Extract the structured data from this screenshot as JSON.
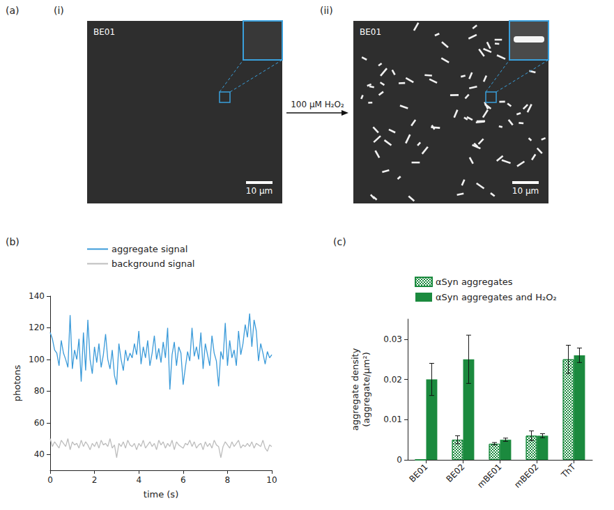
{
  "panels": {
    "a": {
      "panel_label": "(a)",
      "images": [
        {
          "label": "(i)",
          "sample": "BE01",
          "scale_bar": "10 μm"
        },
        {
          "label": "(ii)",
          "sample": "BE01",
          "scale_bar": "10 μm"
        }
      ],
      "arrow_label": "100 μM H₂O₂"
    }
  },
  "chart_data": [
    {
      "panel_label": "(b)",
      "type": "line",
      "xlabel": "time (s)",
      "ylabel": "photons",
      "x": [
        0,
        0.1,
        0.2,
        0.3,
        0.4,
        0.5,
        0.6,
        0.7,
        0.8,
        0.9,
        1,
        1.1,
        1.2,
        1.3,
        1.4,
        1.5,
        1.6,
        1.7,
        1.8,
        1.9,
        2,
        2.1,
        2.2,
        2.3,
        2.4,
        2.5,
        2.6,
        2.7,
        2.8,
        2.9,
        3,
        3.1,
        3.2,
        3.3,
        3.4,
        3.5,
        3.6,
        3.7,
        3.8,
        3.9,
        4,
        4.1,
        4.2,
        4.3,
        4.4,
        4.5,
        4.6,
        4.7,
        4.8,
        4.9,
        5,
        5.1,
        5.2,
        5.3,
        5.4,
        5.5,
        5.6,
        5.7,
        5.8,
        5.9,
        6,
        6.1,
        6.2,
        6.3,
        6.4,
        6.5,
        6.6,
        6.7,
        6.8,
        6.9,
        7,
        7.1,
        7.2,
        7.3,
        7.4,
        7.5,
        7.6,
        7.7,
        7.8,
        7.9,
        8,
        8.1,
        8.2,
        8.3,
        8.4,
        8.5,
        8.6,
        8.7,
        8.8,
        8.9,
        9,
        9.1,
        9.2,
        9.3,
        9.4,
        9.5,
        9.6,
        9.7,
        9.8,
        9.9,
        10
      ],
      "series": [
        {
          "name": "aggregate signal",
          "color": "#3a9ad9",
          "values": [
            117,
            113,
            106,
            104,
            96,
            112,
            104,
            100,
            95,
            128,
            94,
            106,
            100,
            113,
            86,
            117,
            93,
            125,
            100,
            91,
            108,
            98,
            110,
            95,
            103,
            116,
            100,
            94,
            106,
            90,
            84,
            110,
            100,
            93,
            106,
            99,
            104,
            101,
            110,
            103,
            118,
            97,
            108,
            101,
            112,
            96,
            104,
            115,
            100,
            107,
            98,
            111,
            101,
            120,
            81,
            103,
            111,
            96,
            108,
            104,
            84,
            95,
            105,
            99,
            120,
            102,
            108,
            100,
            117,
            94,
            110,
            103,
            96,
            115,
            104,
            99,
            83,
            105,
            100,
            123,
            96,
            112,
            101,
            106,
            96,
            118,
            103,
            110,
            122,
            114,
            129,
            108,
            125,
            118,
            99,
            110,
            104,
            97,
            105,
            101,
            103
          ]
        },
        {
          "name": "background signal",
          "color": "#bdbdbd",
          "values": [
            50,
            45,
            48,
            46,
            44,
            49,
            47,
            45,
            50,
            43,
            48,
            46,
            47,
            44,
            49,
            45,
            48,
            46,
            43,
            47,
            45,
            48,
            44,
            49,
            46,
            47,
            45,
            50,
            44,
            46,
            38,
            47,
            45,
            48,
            44,
            49,
            46,
            45,
            47,
            43,
            47,
            45,
            49,
            44,
            46,
            48,
            45,
            47,
            43,
            49,
            46,
            48,
            44,
            47,
            45,
            49,
            43,
            48,
            46,
            45,
            44,
            47,
            46,
            49,
            45,
            48,
            44,
            46,
            47,
            43,
            48,
            45,
            47,
            44,
            49,
            46,
            45,
            38,
            45,
            48,
            46,
            44,
            48,
            45,
            47,
            49,
            44,
            46,
            45,
            47,
            45,
            48,
            44,
            47,
            46,
            45,
            49,
            44,
            42,
            46,
            45
          ]
        }
      ],
      "xlim": [
        0,
        10
      ],
      "xticks": [
        0,
        2,
        4,
        6,
        8,
        10
      ],
      "ylim": [
        30,
        140
      ],
      "yticks": [
        40,
        60,
        80,
        100,
        120,
        140
      ],
      "grid": false,
      "legend": "top"
    },
    {
      "panel_label": "(c)",
      "type": "bar",
      "ylabel": "aggregate density (aggregate/µm²)",
      "categories": [
        "BE01",
        "BE02",
        "mBE01",
        "mBE02",
        "ThT"
      ],
      "series": [
        {
          "name": "αSyn aggregates",
          "color": "#1b8a3e",
          "marker": "dotted",
          "values": [
            0,
            0.005,
            0.004,
            0.006,
            0.025
          ],
          "errors": [
            null,
            0.001,
            0.0003,
            0.0012,
            0.0035
          ]
        },
        {
          "name": "αSyn aggregates and H₂O₂",
          "color": "#1b8a3e",
          "marker": "solid",
          "values": [
            0.02,
            0.025,
            0.005,
            0.006,
            0.026
          ],
          "errors": [
            0.004,
            0.006,
            0.0004,
            0.0005,
            0.0018
          ]
        }
      ],
      "ylim": [
        0,
        0.035
      ],
      "yticks": [
        0,
        0.01,
        0.02,
        0.03
      ],
      "grid": false,
      "legend": "top"
    }
  ]
}
